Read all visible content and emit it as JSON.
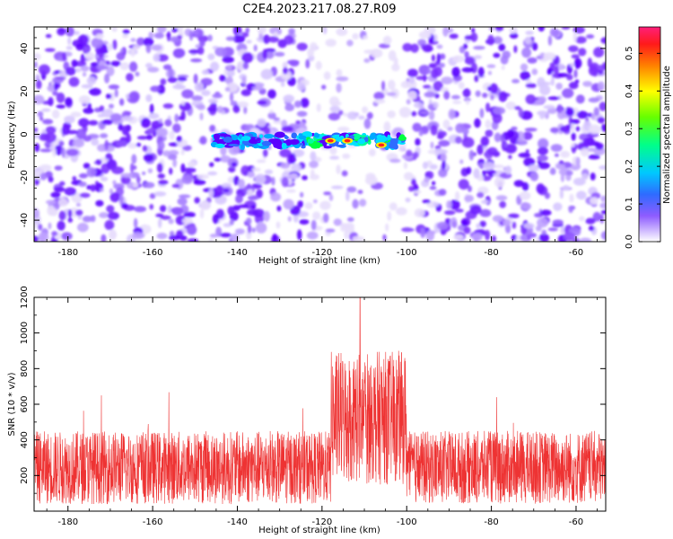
{
  "title": "C2E4.2023.217.08.27.R09",
  "chart_data": [
    {
      "type": "heatmap",
      "xlabel": "Height of straight line (km)",
      "ylabel": "Frequency (Hz)",
      "xlim": [
        -188,
        -53
      ],
      "ylim": [
        -50,
        50
      ],
      "xticks": [
        -180,
        -160,
        -140,
        -120,
        -100,
        -80,
        -60
      ],
      "yticks": [
        -40,
        -20,
        0,
        20,
        40
      ],
      "grid": false,
      "colorbar": {
        "label": "Normalized spectral amplitude",
        "range": [
          0,
          0.57
        ],
        "ticks": [
          0.0,
          0.1,
          0.2,
          0.3,
          0.4,
          0.5
        ],
        "colors": [
          "#ffffff",
          "#5a00ff",
          "#0088ff",
          "#00ffff",
          "#00ff40",
          "#aaff00",
          "#ffff00",
          "#ff8000",
          "#ff0000",
          "#ff0088"
        ]
      },
      "signal_band": {
        "x_range": [
          -146,
          -100
        ],
        "freq_center": -3,
        "peak_points": [
          {
            "x": -118,
            "y": -3,
            "value": 0.5
          },
          {
            "x": -114,
            "y": -3,
            "value": 0.45
          },
          {
            "x": -106,
            "y": -5,
            "value": 0.45
          }
        ]
      }
    },
    {
      "type": "line",
      "xlabel": "Height of straight line (km)",
      "ylabel": "SNR (10 * v/v)",
      "xlim": [
        -188,
        -53
      ],
      "ylim": [
        0,
        1200
      ],
      "xticks": [
        -180,
        -160,
        -140,
        -120,
        -100,
        -80,
        -60
      ],
      "yticks": [
        200,
        400,
        600,
        800,
        1000,
        1200
      ],
      "series": [
        {
          "color": "#ee3333",
          "baseline": 250,
          "noise_band": [
            40,
            450
          ],
          "peak_region_x": [
            -118,
            -100
          ],
          "peak_region_level": [
            150,
            900
          ],
          "max": {
            "x": -111,
            "y": 1200
          }
        }
      ]
    }
  ]
}
